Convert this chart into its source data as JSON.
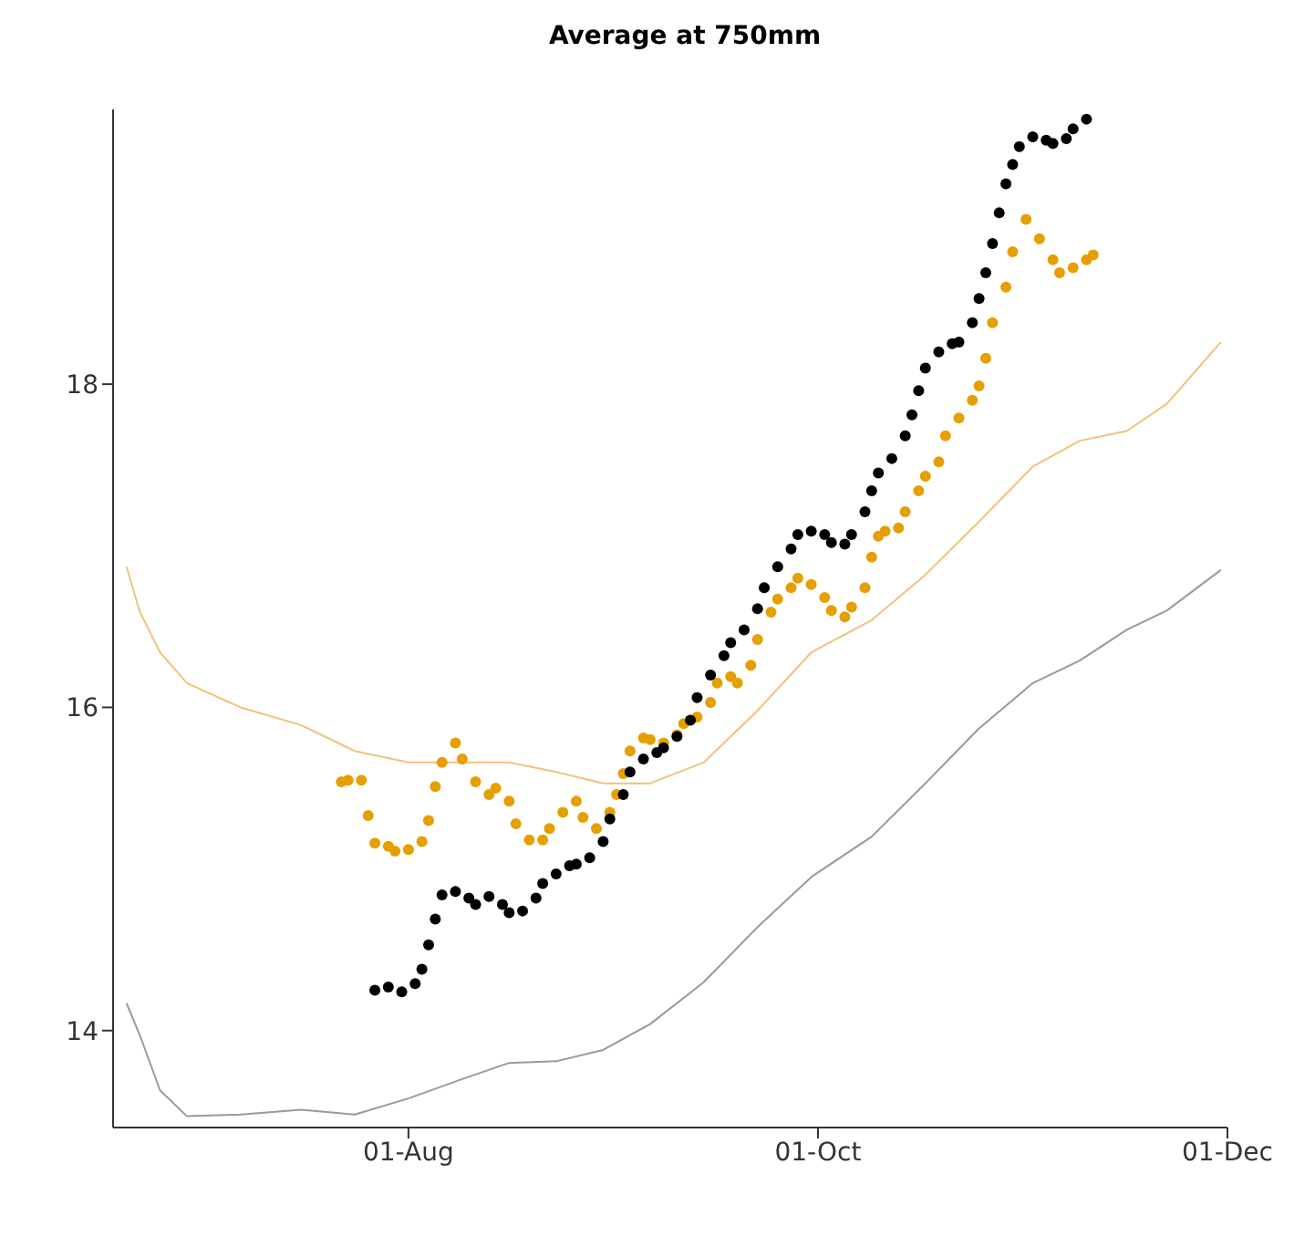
{
  "chart_data": {
    "type": "scatter",
    "title": "Average at 750mm",
    "xlim": [
      "--06-18",
      "--12-01"
    ],
    "xticks": [
      {
        "value": "--08-01",
        "label": "01-Aug"
      },
      {
        "value": "--10-01",
        "label": "01-Oct"
      },
      {
        "value": "--12-01",
        "label": "01-Dec"
      }
    ],
    "ylim": [
      13.4,
      19.7
    ],
    "yticks": [
      14,
      16,
      18
    ],
    "grid": false,
    "legend": false,
    "series": [
      {
        "type": "line",
        "color": "#f0c27a",
        "x": [
          "--06-20",
          "--06-22",
          "--06-25",
          "--06-29",
          "--07-07",
          "--07-16",
          "--07-24",
          "--08-01",
          "--08-09",
          "--08-16",
          "--08-23",
          "--08-30",
          "--09-06",
          "--09-14",
          "--09-22",
          "--09-30",
          "--10-09",
          "--10-17",
          "--10-25",
          "--11-02",
          "--11-09",
          "--11-16",
          "--11-22",
          "--11-30"
        ],
        "values": [
          16.87,
          16.59,
          16.34,
          16.15,
          16.0,
          15.89,
          15.73,
          15.66,
          15.66,
          15.66,
          15.6,
          15.53,
          15.53,
          15.66,
          15.98,
          16.34,
          16.54,
          16.82,
          17.15,
          17.49,
          17.65,
          17.71,
          17.88,
          18.26
        ]
      },
      {
        "type": "line",
        "color": "#999999",
        "x": [
          "--06-20",
          "--06-22",
          "--06-25",
          "--06-29",
          "--07-07",
          "--07-16",
          "--07-24",
          "--08-01",
          "--08-09",
          "--08-16",
          "--08-23",
          "--08-30",
          "--09-06",
          "--09-14",
          "--09-22",
          "--09-30",
          "--10-09",
          "--10-17",
          "--10-25",
          "--11-02",
          "--11-09",
          "--11-16",
          "--11-22",
          "--11-30"
        ],
        "values": [
          14.17,
          13.97,
          13.63,
          13.47,
          13.48,
          13.51,
          13.48,
          13.58,
          13.7,
          13.8,
          13.81,
          13.88,
          14.04,
          14.3,
          14.64,
          14.95,
          15.2,
          15.53,
          15.87,
          16.15,
          16.29,
          16.48,
          16.6,
          16.85
        ]
      },
      {
        "marker": "circle",
        "color": "#e69f00",
        "x": [
          "--07-22",
          "--07-23",
          "--07-25",
          "--07-26",
          "--07-27",
          "--07-29",
          "--07-30",
          "--08-01",
          "--08-03",
          "--08-04",
          "--08-05",
          "--08-06",
          "--08-08",
          "--08-09",
          "--08-11",
          "--08-13",
          "--08-14",
          "--08-16",
          "--08-17",
          "--08-19",
          "--08-21",
          "--08-22",
          "--08-24",
          "--08-26",
          "--08-27",
          "--08-29",
          "--08-31",
          "--09-01",
          "--09-02",
          "--09-03",
          "--09-05",
          "--09-06",
          "--09-08",
          "--09-10",
          "--09-11",
          "--09-13",
          "--09-15",
          "--09-16",
          "--09-18",
          "--09-19",
          "--09-21",
          "--09-22",
          "--09-24",
          "--09-25",
          "--09-27",
          "--09-28",
          "--09-30",
          "--10-02",
          "--10-03",
          "--10-05",
          "--10-06",
          "--10-08",
          "--10-09",
          "--10-10",
          "--10-11",
          "--10-13",
          "--10-14",
          "--10-16",
          "--10-17",
          "--10-19",
          "--10-20",
          "--10-22",
          "--10-24",
          "--10-25",
          "--10-26",
          "--10-27",
          "--10-29",
          "--10-30",
          "--11-01",
          "--11-03",
          "--11-05",
          "--11-06",
          "--11-08",
          "--11-10",
          "--11-11"
        ],
        "values": [
          15.54,
          15.55,
          15.55,
          15.33,
          15.16,
          15.14,
          15.11,
          15.12,
          15.17,
          15.3,
          15.51,
          15.66,
          15.78,
          15.68,
          15.54,
          15.46,
          15.5,
          15.42,
          15.28,
          15.18,
          15.18,
          15.25,
          15.35,
          15.42,
          15.32,
          15.25,
          15.35,
          15.46,
          15.59,
          15.73,
          15.81,
          15.8,
          15.78,
          15.83,
          15.9,
          15.94,
          16.03,
          16.15,
          16.19,
          16.15,
          16.26,
          16.42,
          16.59,
          16.67,
          16.74,
          16.8,
          16.76,
          16.68,
          16.6,
          16.56,
          16.62,
          16.74,
          16.93,
          17.06,
          17.09,
          17.11,
          17.21,
          17.34,
          17.43,
          17.52,
          17.68,
          17.79,
          17.9,
          17.99,
          18.16,
          18.38,
          18.6,
          18.82,
          19.02,
          18.9,
          18.77,
          18.69,
          18.72,
          18.77,
          18.8
        ]
      },
      {
        "marker": "circle",
        "color": "#000000",
        "x": [
          "--07-27",
          "--07-29",
          "--07-31",
          "--08-02",
          "--08-03",
          "--08-04",
          "--08-05",
          "--08-06",
          "--08-08",
          "--08-10",
          "--08-11",
          "--08-13",
          "--08-15",
          "--08-16",
          "--08-18",
          "--08-20",
          "--08-21",
          "--08-23",
          "--08-25",
          "--08-26",
          "--08-28",
          "--08-30",
          "--08-31",
          "--09-02",
          "--09-03",
          "--09-05",
          "--09-07",
          "--09-08",
          "--09-10",
          "--09-12",
          "--09-13",
          "--09-15",
          "--09-17",
          "--09-18",
          "--09-20",
          "--09-22",
          "--09-23",
          "--09-25",
          "--09-27",
          "--09-28",
          "--09-30",
          "--10-02",
          "--10-03",
          "--10-05",
          "--10-06",
          "--10-08",
          "--10-09",
          "--10-10",
          "--10-12",
          "--10-14",
          "--10-15",
          "--10-16",
          "--10-17",
          "--10-19",
          "--10-21",
          "--10-22",
          "--10-24",
          "--10-25",
          "--10-26",
          "--10-27",
          "--10-28",
          "--10-29",
          "--10-30",
          "--10-31",
          "--11-02",
          "--11-04",
          "--11-05",
          "--11-07",
          "--11-08",
          "--11-10"
        ],
        "values": [
          14.25,
          14.27,
          14.24,
          14.29,
          14.38,
          14.53,
          14.69,
          14.84,
          14.86,
          14.82,
          14.78,
          14.83,
          14.78,
          14.73,
          14.74,
          14.82,
          14.91,
          14.97,
          15.02,
          15.03,
          15.07,
          15.17,
          15.31,
          15.46,
          15.6,
          15.68,
          15.72,
          15.75,
          15.82,
          15.92,
          16.06,
          16.2,
          16.32,
          16.4,
          16.48,
          16.61,
          16.74,
          16.87,
          16.98,
          17.07,
          17.09,
          17.07,
          17.02,
          17.01,
          17.07,
          17.21,
          17.34,
          17.45,
          17.54,
          17.68,
          17.81,
          17.96,
          18.1,
          18.2,
          18.25,
          18.26,
          18.38,
          18.53,
          18.69,
          18.87,
          19.06,
          19.24,
          19.36,
          19.47,
          19.53,
          19.51,
          19.49,
          19.52,
          19.58,
          19.64
        ]
      }
    ]
  }
}
